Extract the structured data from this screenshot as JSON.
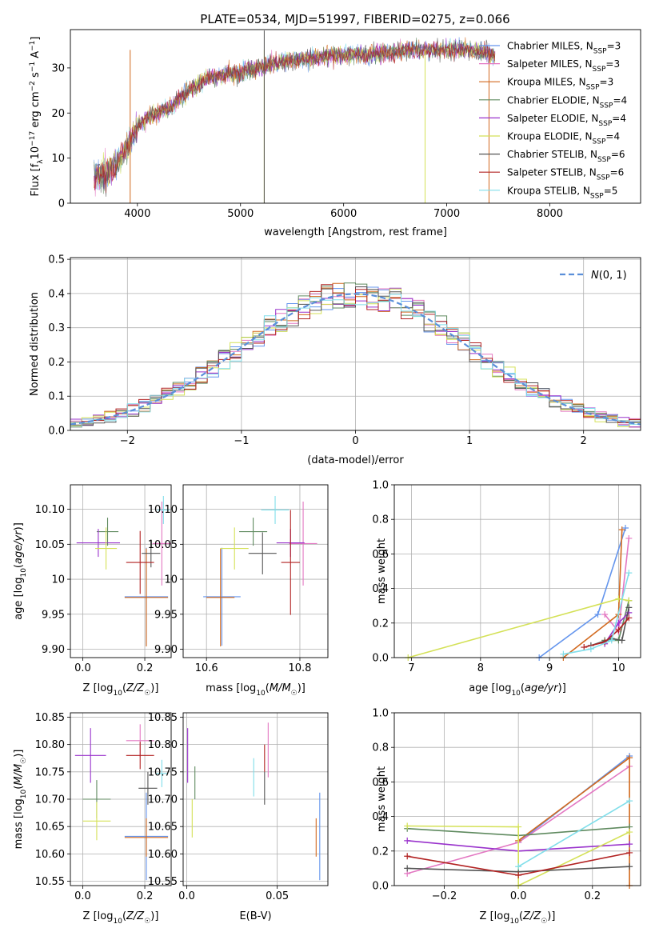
{
  "figure_title": "PLATE=0534, MJD=51997, FIBERID=0275, z=0.066",
  "series_colors": [
    "#6495ed",
    "#e377c2",
    "#d2691e",
    "#5f8a5f",
    "#9932cc",
    "#d4e157",
    "#555555",
    "#b22222",
    "#80deea"
  ],
  "chart_data": [
    {
      "type": "line",
      "panel": "spectrum",
      "title": "PLATE=0534, MJD=51997, FIBERID=0275, z=0.066",
      "xlabel": "wavelength [Angstrom, rest frame]",
      "ylabel_parts": [
        "Flux [f",
        "λ",
        "10",
        "−17",
        " erg cm",
        "−2",
        " s",
        "−1",
        " A",
        "−1",
        "]"
      ],
      "xlim": [
        3350,
        8880
      ],
      "ylim": [
        0,
        38.5
      ],
      "xticks": [
        4000,
        5000,
        6000,
        7000,
        8000
      ],
      "yticks": [
        0,
        10,
        20,
        30
      ],
      "grid": false,
      "legend_position": "right",
      "series": [
        {
          "name": "Chabrier MILES",
          "nssp": "3"
        },
        {
          "name": "Salpeter MILES",
          "nssp": "3"
        },
        {
          "name": "Kroupa MILES",
          "nssp": "3"
        },
        {
          "name": "Chabrier ELODIE",
          "nssp": "4"
        },
        {
          "name": "Salpeter ELODIE",
          "nssp": "4"
        },
        {
          "name": "Kroupa ELODIE",
          "nssp": "4"
        },
        {
          "name": "Chabrier STELIB",
          "nssp": "6"
        },
        {
          "name": "Salpeter STELIB",
          "nssp": "6"
        },
        {
          "name": "Kroupa STELIB",
          "nssp": "5"
        }
      ],
      "continuum_x": [
        3580,
        3700,
        3800,
        3900,
        3990,
        4100,
        4300,
        4500,
        4700,
        5000,
        5300,
        5600,
        6000,
        6300,
        6600,
        6900,
        7200,
        7400,
        7470
      ],
      "continuum_y": [
        6,
        7,
        9,
        12,
        17,
        19,
        21,
        25,
        28,
        29,
        31,
        32,
        33,
        33,
        34,
        34,
        34,
        33,
        33
      ]
    },
    {
      "type": "histogram",
      "panel": "residuals",
      "xlabel": "(data-model)/error",
      "ylabel": "Normed distribution",
      "xlim": [
        -2.5,
        2.5
      ],
      "ylim": [
        0,
        0.505
      ],
      "xticks": [
        -2,
        -1,
        0,
        1,
        2
      ],
      "yticks": [
        0.0,
        0.1,
        0.2,
        0.3,
        0.4,
        0.5
      ],
      "grid": true,
      "legend_position": "upper right",
      "reference_label": "N(0,1)",
      "bin_width": 0.1
    },
    {
      "type": "scatter",
      "panel": "age-vs-Z",
      "xlabel": "Z [log10(Z/Z☉)]",
      "ylabel": "age [log10(age/yr)]",
      "xlim": [
        -0.04,
        0.285
      ],
      "ylim": [
        9.888,
        10.135
      ],
      "xticks": [
        0.0,
        0.2
      ],
      "yticks": [
        9.9,
        9.95,
        10.0,
        10.05,
        10.1
      ],
      "grid": true,
      "points": [
        {
          "x": 0.205,
          "y": 9.975,
          "xerr": 0.07,
          "yerr": 0.07,
          "c": 0
        },
        {
          "x": 0.255,
          "y": 10.051,
          "xerr": 0.03,
          "yerr": 0.06,
          "c": 1
        },
        {
          "x": 0.205,
          "y": 9.974,
          "xerr": 0.07,
          "yerr": 0.07,
          "c": 2
        },
        {
          "x": 0.08,
          "y": 10.068,
          "xerr": 0.035,
          "yerr": 0.02,
          "c": 3
        },
        {
          "x": 0.05,
          "y": 10.052,
          "xerr": 0.07,
          "yerr": 0.02,
          "c": 4
        },
        {
          "x": 0.075,
          "y": 10.044,
          "xerr": 0.035,
          "yerr": 0.03,
          "c": 5
        },
        {
          "x": 0.22,
          "y": 10.037,
          "xerr": 0.03,
          "yerr": 0.02,
          "c": 6
        },
        {
          "x": 0.185,
          "y": 10.024,
          "xerr": 0.045,
          "yerr": 0.045,
          "c": 7
        },
        {
          "x": 0.26,
          "y": 10.099,
          "xerr": 0.02,
          "yerr": 0.02,
          "c": 8
        }
      ]
    },
    {
      "type": "scatter",
      "panel": "age-vs-mass",
      "xlabel": "mass [log10(M/M☉)]",
      "ylabel": "",
      "xlim": [
        10.55,
        10.86
      ],
      "ylim": [
        9.888,
        10.135
      ],
      "xticks": [
        10.6,
        10.8
      ],
      "yticks": [
        9.9,
        9.95,
        10.0,
        10.05,
        10.1
      ],
      "grid": true,
      "points": [
        {
          "x": 10.633,
          "y": 9.975,
          "xerr": 0.04,
          "yerr": 0.07,
          "c": 0
        },
        {
          "x": 10.807,
          "y": 10.051,
          "xerr": 0.03,
          "yerr": 0.06,
          "c": 1
        },
        {
          "x": 10.63,
          "y": 9.974,
          "xerr": 0.03,
          "yerr": 0.07,
          "c": 2
        },
        {
          "x": 10.7,
          "y": 10.068,
          "xerr": 0.03,
          "yerr": 0.02,
          "c": 3
        },
        {
          "x": 10.78,
          "y": 10.052,
          "xerr": 0.03,
          "yerr": 0.02,
          "c": 4
        },
        {
          "x": 10.66,
          "y": 10.044,
          "xerr": 0.03,
          "yerr": 0.03,
          "c": 5
        },
        {
          "x": 10.72,
          "y": 10.037,
          "xerr": 0.03,
          "yerr": 0.03,
          "c": 6
        },
        {
          "x": 10.78,
          "y": 10.024,
          "xerr": 0.02,
          "yerr": 0.075,
          "c": 7
        },
        {
          "x": 10.747,
          "y": 10.099,
          "xerr": 0.03,
          "yerr": 0.02,
          "c": 8
        }
      ]
    },
    {
      "type": "line",
      "panel": "mass-weight-vs-age",
      "xlabel": "age [log10(age/yr)]",
      "ylabel": "mass weight",
      "xlim": [
        6.75,
        10.32
      ],
      "ylim": [
        0,
        1.0
      ],
      "xticks": [
        7,
        8,
        9,
        10
      ],
      "yticks": [
        0.0,
        0.2,
        0.4,
        0.6,
        0.8,
        1.0
      ],
      "grid": true,
      "series": [
        {
          "c": 0,
          "x": [
            8.85,
            9.7,
            10.1
          ],
          "y": [
            0.0,
            0.25,
            0.75
          ]
        },
        {
          "c": 1,
          "x": [
            9.8,
            10.0,
            10.15
          ],
          "y": [
            0.25,
            0.15,
            0.69
          ]
        },
        {
          "c": 2,
          "x": [
            9.2,
            10.0,
            10.05
          ],
          "y": [
            0.0,
            0.25,
            0.74
          ]
        },
        {
          "c": 3,
          "x": [
            9.8,
            10.0,
            10.15
          ],
          "y": [
            0.1,
            0.1,
            0.33
          ]
        },
        {
          "c": 4,
          "x": [
            9.8,
            10.0,
            10.15
          ],
          "y": [
            0.08,
            0.2,
            0.26
          ]
        },
        {
          "c": 5,
          "x": [
            6.95,
            10.0,
            10.15
          ],
          "y": [
            0.0,
            0.34,
            0.33
          ]
        },
        {
          "c": 6,
          "x": [
            9.6,
            9.9,
            10.05,
            10.15
          ],
          "y": [
            0.07,
            0.11,
            0.1,
            0.29
          ]
        },
        {
          "c": 7,
          "x": [
            9.5,
            9.8,
            10.0,
            10.15
          ],
          "y": [
            0.06,
            0.09,
            0.16,
            0.23
          ]
        },
        {
          "c": 8,
          "x": [
            9.2,
            9.6,
            9.9,
            10.15
          ],
          "y": [
            0.02,
            0.05,
            0.1,
            0.49
          ]
        }
      ]
    },
    {
      "type": "scatter",
      "panel": "mass-vs-Z",
      "xlabel": "Z [log10(Z/Z☉)]",
      "ylabel": "mass [log10(M/M☉)]",
      "xlim": [
        -0.04,
        0.285
      ],
      "ylim": [
        10.542,
        10.858
      ],
      "xticks": [
        0.0,
        0.2
      ],
      "yticks": [
        10.55,
        10.6,
        10.65,
        10.7,
        10.75,
        10.8,
        10.85
      ],
      "grid": true,
      "points": [
        {
          "x": 0.205,
          "y": 10.632,
          "xerr": 0.07,
          "yerr": 0.08,
          "c": 0
        },
        {
          "x": 0.185,
          "y": 10.807,
          "xerr": 0.045,
          "yerr": 0.03,
          "c": 1
        },
        {
          "x": 0.205,
          "y": 10.63,
          "xerr": 0.07,
          "yerr": 0.035,
          "c": 2
        },
        {
          "x": 0.045,
          "y": 10.7,
          "xerr": 0.045,
          "yerr": 0.035,
          "c": 3
        },
        {
          "x": 0.025,
          "y": 10.78,
          "xerr": 0.05,
          "yerr": 0.05,
          "c": 4
        },
        {
          "x": 0.045,
          "y": 10.66,
          "xerr": 0.045,
          "yerr": 0.035,
          "c": 5
        },
        {
          "x": 0.21,
          "y": 10.72,
          "xerr": 0.03,
          "yerr": 0.03,
          "c": 6
        },
        {
          "x": 0.185,
          "y": 10.78,
          "xerr": 0.045,
          "yerr": 0.025,
          "c": 7
        },
        {
          "x": 0.255,
          "y": 10.747,
          "xerr": 0.02,
          "yerr": 0.025,
          "c": 8
        }
      ]
    },
    {
      "type": "scatter",
      "panel": "mass-vs-EBV",
      "xlabel": "E(B-V)",
      "ylabel": "",
      "xlim": [
        -0.002,
        0.078
      ],
      "ylim": [
        10.542,
        10.858
      ],
      "xticks": [
        0.0,
        0.05
      ],
      "yticks": [
        10.55,
        10.6,
        10.65,
        10.7,
        10.75,
        10.8,
        10.85
      ],
      "grid": true,
      "points": [
        {
          "x": 0.0735,
          "y": 10.632,
          "xerr": 0,
          "yerr": 0.08,
          "c": 0
        },
        {
          "x": 0.045,
          "y": 10.79,
          "xerr": 0,
          "yerr": 0.05,
          "c": 1
        },
        {
          "x": 0.0715,
          "y": 10.63,
          "xerr": 0,
          "yerr": 0.035,
          "c": 2
        },
        {
          "x": 0.0045,
          "y": 10.73,
          "xerr": 0,
          "yerr": 0.03,
          "c": 3
        },
        {
          "x": 0.0005,
          "y": 10.78,
          "xerr": 0,
          "yerr": 0.05,
          "c": 4
        },
        {
          "x": 0.003,
          "y": 10.665,
          "xerr": 0,
          "yerr": 0.035,
          "c": 5
        },
        {
          "x": 0.043,
          "y": 10.72,
          "xerr": 0,
          "yerr": 0.03,
          "c": 6
        },
        {
          "x": 0.043,
          "y": 10.775,
          "xerr": 0,
          "yerr": 0.025,
          "c": 7
        },
        {
          "x": 0.037,
          "y": 10.74,
          "xerr": 0,
          "yerr": 0.035,
          "c": 8
        }
      ]
    },
    {
      "type": "line",
      "panel": "mass-weight-vs-Z",
      "xlabel": "Z [log10(Z/Z☉)]",
      "ylabel": "mass weight",
      "xlim": [
        -0.335,
        0.33
      ],
      "ylim": [
        0,
        1.0
      ],
      "xticks": [
        -0.2,
        0.0,
        0.2
      ],
      "yticks": [
        0.0,
        0.2,
        0.4,
        0.6,
        0.8,
        1.0
      ],
      "grid": true,
      "series": [
        {
          "c": 0,
          "x": [
            0.0,
            0.3
          ],
          "y": [
            0.25,
            0.75
          ]
        },
        {
          "c": 1,
          "x": [
            -0.3,
            0.0,
            0.3
          ],
          "y": [
            0.07,
            0.25,
            0.69
          ]
        },
        {
          "c": 2,
          "x": [
            0.0,
            0.3,
            0.3
          ],
          "y": [
            0.26,
            0.74,
            0.0
          ]
        },
        {
          "c": 3,
          "x": [
            -0.3,
            0.0,
            0.3
          ],
          "y": [
            0.33,
            0.29,
            0.34
          ]
        },
        {
          "c": 4,
          "x": [
            -0.3,
            0.0,
            0.3
          ],
          "y": [
            0.26,
            0.2,
            0.24
          ]
        },
        {
          "c": 5,
          "x": [
            -0.3,
            0.0,
            0.0,
            0.3
          ],
          "y": [
            0.345,
            0.34,
            0.0,
            0.31
          ]
        },
        {
          "c": 6,
          "x": [
            -0.3,
            0.0,
            0.3
          ],
          "y": [
            0.1,
            0.08,
            0.11
          ]
        },
        {
          "c": 7,
          "x": [
            -0.3,
            0.0,
            0.3
          ],
          "y": [
            0.17,
            0.06,
            0.19
          ]
        },
        {
          "c": 8,
          "x": [
            0.0,
            0.3
          ],
          "y": [
            0.11,
            0.49
          ]
        }
      ]
    }
  ]
}
